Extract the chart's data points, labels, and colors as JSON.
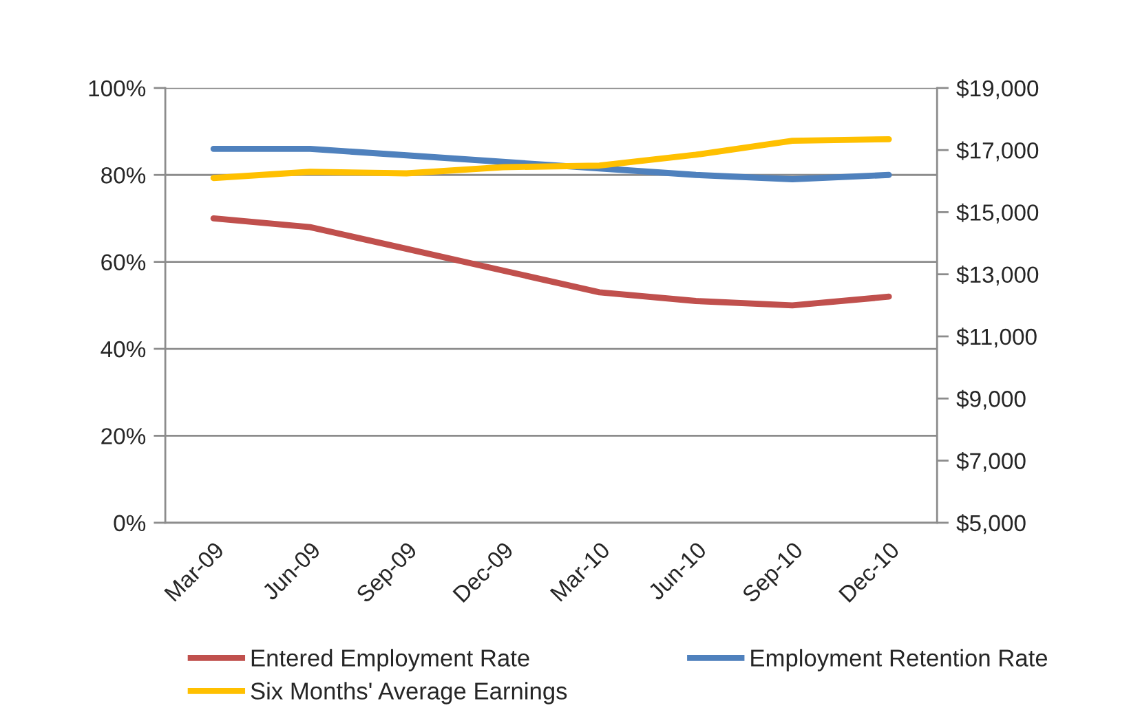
{
  "chart_data": {
    "type": "line",
    "categories": [
      "Mar-09",
      "Jun-09",
      "Sep-09",
      "Dec-09",
      "Mar-10",
      "Jun-10",
      "Sep-10",
      "Dec-10"
    ],
    "series": [
      {
        "name": "Entered Employment Rate",
        "color": "#c0504d",
        "values": [
          70,
          68,
          63,
          58,
          53,
          51,
          50,
          52
        ]
      },
      {
        "name": "Employment Retention Rate",
        "color": "#4f81bd",
        "values": [
          86,
          86,
          84.5,
          83,
          81.5,
          80,
          79,
          80
        ]
      },
      {
        "name": "Six Months' Average Earnings",
        "color": "#ffc000",
        "axis": "y2",
        "values": [
          16100,
          16300,
          16250,
          16450,
          16500,
          16850,
          17300,
          17350
        ]
      }
    ],
    "ylim": [
      0,
      100
    ],
    "yticks": [
      {
        "value": 0,
        "label": "0%"
      },
      {
        "value": 20,
        "label": "20%"
      },
      {
        "value": 40,
        "label": "40%"
      },
      {
        "value": 60,
        "label": "60%"
      },
      {
        "value": 80,
        "label": "80%"
      },
      {
        "value": 100,
        "label": "100%"
      }
    ],
    "y2lim": [
      5000,
      19000
    ],
    "y2ticks": [
      {
        "value": 5000,
        "label": "$5,000"
      },
      {
        "value": 7000,
        "label": "$7,000"
      },
      {
        "value": 9000,
        "label": "$9,000"
      },
      {
        "value": 11000,
        "label": "$11,000"
      },
      {
        "value": 13000,
        "label": "$13,000"
      },
      {
        "value": 15000,
        "label": "$15,000"
      },
      {
        "value": 17000,
        "label": "$17,000"
      },
      {
        "value": 19000,
        "label": "$19,000"
      }
    ],
    "grid": "y",
    "legend": "bottom"
  }
}
